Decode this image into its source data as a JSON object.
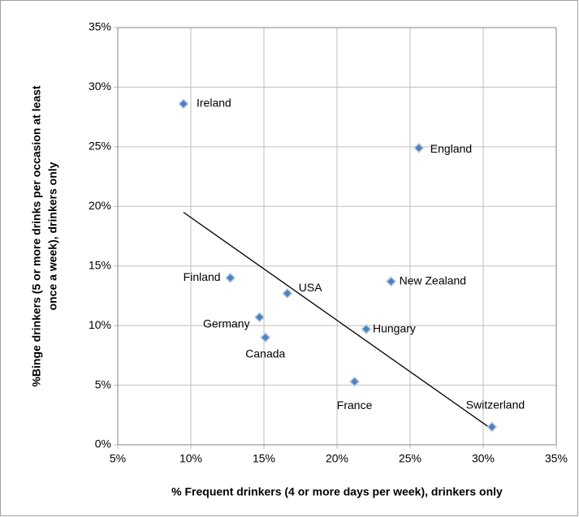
{
  "chart_data": {
    "type": "scatter",
    "xlabel": "% Frequent drinkers (4 or more days per week), drinkers only",
    "ylabel": [
      "%Binge drinkers (5 or more drinks  per occasion  at least",
      "once a week), drinkers only"
    ],
    "series": [
      {
        "color": "#4f81bd",
        "labels": [
          "Ireland",
          "England",
          "Finland",
          "USA",
          "Germany",
          "Canada",
          "New Zealand",
          "Hungary",
          "France",
          "Switzerland"
        ],
        "x": [
          9.5,
          25.6,
          12.7,
          16.6,
          14.7,
          15.1,
          23.7,
          22.0,
          21.2,
          30.6
        ],
        "values": [
          28.6,
          24.9,
          14.0,
          12.7,
          10.7,
          9.0,
          13.7,
          9.7,
          5.3,
          1.5
        ]
      }
    ],
    "trendline": {
      "color": "#000000",
      "x": [
        9.5,
        30.6
      ],
      "values": [
        19.5,
        1.3
      ]
    },
    "xlim": [
      5,
      35
    ],
    "xticks": [
      {
        "value": 5,
        "label": "5%"
      },
      {
        "value": 10,
        "label": "10%"
      },
      {
        "value": 15,
        "label": "15%"
      },
      {
        "value": 20,
        "label": "20%"
      },
      {
        "value": 25,
        "label": "25%"
      },
      {
        "value": 30,
        "label": "30%"
      },
      {
        "value": 35,
        "label": "35%"
      }
    ],
    "ylim": [
      0,
      35
    ],
    "yticks": [
      {
        "value": 0,
        "label": "0%"
      },
      {
        "value": 5,
        "label": "5%"
      },
      {
        "value": 10,
        "label": "10%"
      },
      {
        "value": 15,
        "label": "15%"
      },
      {
        "value": 20,
        "label": "20%"
      },
      {
        "value": 25,
        "label": "25%"
      },
      {
        "value": 30,
        "label": "30%"
      },
      {
        "value": 35,
        "label": "35%"
      }
    ],
    "grid": true
  }
}
